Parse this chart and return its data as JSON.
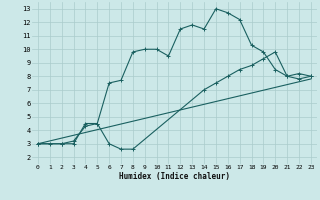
{
  "bg_color": "#cce8e8",
  "grid_color": "#aacccc",
  "line_color": "#1a6060",
  "xlabel": "Humidex (Indice chaleur)",
  "xlim": [
    -0.5,
    23.5
  ],
  "ylim": [
    1.5,
    13.5
  ],
  "yticks": [
    2,
    3,
    4,
    5,
    6,
    7,
    8,
    9,
    10,
    11,
    12,
    13
  ],
  "xticks": [
    0,
    1,
    2,
    3,
    4,
    5,
    6,
    7,
    8,
    9,
    10,
    11,
    12,
    13,
    14,
    15,
    16,
    17,
    18,
    19,
    20,
    21,
    22,
    23
  ],
  "curve1_x": [
    0,
    1,
    2,
    3,
    4,
    5,
    6,
    7,
    8,
    9,
    10,
    11,
    12,
    13,
    14,
    15,
    16,
    17,
    18,
    19,
    20,
    21,
    22,
    23
  ],
  "curve1_y": [
    3.0,
    3.0,
    3.0,
    3.0,
    4.5,
    4.5,
    7.5,
    7.7,
    9.8,
    10.0,
    10.0,
    9.5,
    11.5,
    11.8,
    11.5,
    13.0,
    12.7,
    12.2,
    10.3,
    9.8,
    8.5,
    8.0,
    7.8,
    8.0
  ],
  "curve2_x": [
    0,
    2,
    3,
    4,
    5,
    6,
    7,
    8,
    14,
    15,
    16,
    17,
    18,
    19,
    20,
    21,
    22,
    23
  ],
  "curve2_y": [
    3.0,
    3.0,
    3.2,
    4.3,
    4.5,
    3.0,
    2.6,
    2.6,
    7.0,
    7.5,
    8.0,
    8.5,
    8.8,
    9.3,
    9.8,
    8.0,
    8.2,
    8.0
  ],
  "curve3_x": [
    0,
    23
  ],
  "curve3_y": [
    3.0,
    7.8
  ]
}
